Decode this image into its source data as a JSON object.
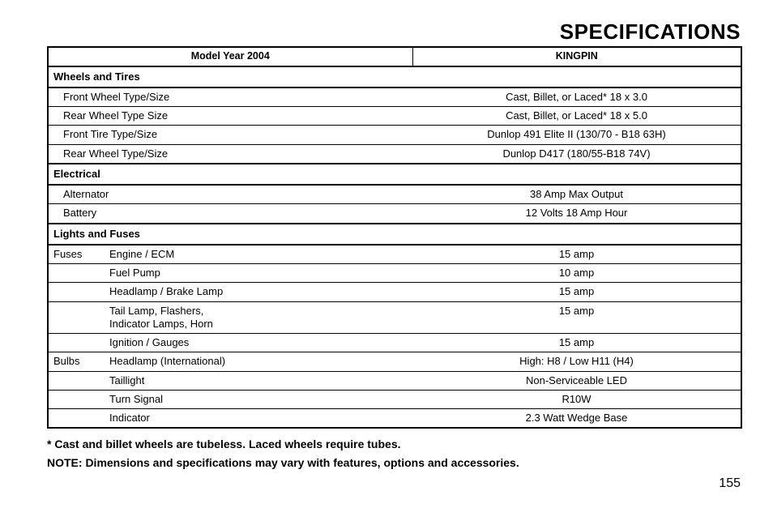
{
  "title": "SPECIFICATIONS",
  "header": {
    "left": "Model Year 2004",
    "right": "KINGPIN"
  },
  "sections": [
    {
      "heading": "Wheels and Tires",
      "rows": [
        {
          "label": "Front Wheel Type/Size",
          "value": "Cast, Billet, or Laced*  18 x 3.0"
        },
        {
          "label": "Rear Wheel Type Size",
          "value": "Cast, Billet, or Laced*  18 x 5.0"
        },
        {
          "label": "Front Tire Type/Size",
          "value": "Dunlop 491 Elite II (130/70 - B18   63H)"
        },
        {
          "label": "Rear Wheel Type/Size",
          "value": "Dunlop D417 (180/55-B18  74V)"
        }
      ]
    },
    {
      "heading": "Electrical",
      "rows": [
        {
          "label": "Alternator",
          "value": "38 Amp Max Output"
        },
        {
          "label": "Battery",
          "value": "12 Volts 18 Amp Hour"
        }
      ]
    },
    {
      "heading": "Lights and Fuses",
      "rows": [
        {
          "prefix": "Fuses",
          "label": "Engine / ECM",
          "value": "15 amp"
        },
        {
          "prefix": "",
          "label": "Fuel Pump",
          "value": "10 amp"
        },
        {
          "prefix": "",
          "label": "Headlamp / Brake Lamp",
          "value": "15 amp"
        },
        {
          "prefix": "",
          "label": "Tail Lamp, Flashers,\nIndicator Lamps,  Horn",
          "value": "15 amp"
        },
        {
          "prefix": "",
          "label": "Ignition / Gauges",
          "value": "15 amp"
        },
        {
          "prefix": "Bulbs",
          "label": "Headlamp (International)",
          "value": "High: H8 / Low H11     (H4)"
        },
        {
          "prefix": "",
          "label": "Taillight",
          "value": "Non-Serviceable LED"
        },
        {
          "prefix": "",
          "label": "Turn Signal",
          "value": "R10W"
        },
        {
          "prefix": "",
          "label": "Indicator",
          "value": "2.3 Watt Wedge Base"
        }
      ]
    }
  ],
  "notes": [
    "* Cast and billet wheels are tubeless.  Laced wheels require tubes.",
    "NOTE: Dimensions and specifications may vary with features, options and accessories."
  ],
  "page_number": "155",
  "colors": {
    "text": "#000000",
    "background": "#ffffff",
    "border": "#000000"
  },
  "typography": {
    "title_fontsize_pt": 20,
    "body_fontsize_pt": 10,
    "notes_fontsize_pt": 11,
    "font_family": "Arial, Helvetica, sans-serif"
  }
}
